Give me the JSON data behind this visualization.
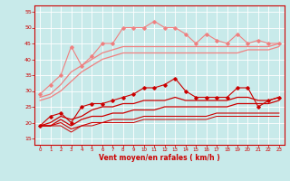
{
  "bg_color": "#c8eaea",
  "grid_color": "#ffffff",
  "xlabel": "Vent moyen/en rafales ( km/h )",
  "xlim": [
    -0.5,
    23.5
  ],
  "ylim": [
    13,
    57
  ],
  "yticks": [
    15,
    20,
    25,
    30,
    35,
    40,
    45,
    50,
    55
  ],
  "xticks": [
    0,
    1,
    2,
    3,
    4,
    5,
    6,
    7,
    8,
    9,
    10,
    11,
    12,
    13,
    14,
    15,
    16,
    17,
    18,
    19,
    20,
    21,
    22,
    23
  ],
  "lines": [
    {
      "x": [
        0,
        1,
        2,
        3,
        4,
        5,
        6,
        7,
        8,
        9,
        10,
        11,
        12,
        13,
        14,
        15,
        16,
        17,
        18,
        19,
        20,
        21,
        22,
        23
      ],
      "y": [
        29,
        32,
        35,
        44,
        38,
        41,
        45,
        45,
        50,
        50,
        50,
        52,
        50,
        50,
        48,
        45,
        48,
        46,
        45,
        48,
        45,
        46,
        45,
        45
      ],
      "color": "#f08080",
      "lw": 0.8,
      "marker": "D",
      "ms": 1.8,
      "zorder": 3
    },
    {
      "x": [
        0,
        1,
        2,
        3,
        4,
        5,
        6,
        7,
        8,
        9,
        10,
        11,
        12,
        13,
        14,
        15,
        16,
        17,
        18,
        19,
        20,
        21,
        22,
        23
      ],
      "y": [
        28,
        29,
        32,
        36,
        38,
        40,
        42,
        43,
        44,
        44,
        44,
        44,
        44,
        44,
        44,
        44,
        44,
        44,
        44,
        44,
        44,
        44,
        44,
        45
      ],
      "color": "#f08080",
      "lw": 0.9,
      "marker": null,
      "ms": 0,
      "zorder": 2
    },
    {
      "x": [
        0,
        1,
        2,
        3,
        4,
        5,
        6,
        7,
        8,
        9,
        10,
        11,
        12,
        13,
        14,
        15,
        16,
        17,
        18,
        19,
        20,
        21,
        22,
        23
      ],
      "y": [
        27,
        28,
        30,
        33,
        36,
        38,
        40,
        41,
        42,
        42,
        42,
        42,
        42,
        42,
        42,
        42,
        42,
        42,
        42,
        42,
        43,
        43,
        43,
        44
      ],
      "color": "#f08080",
      "lw": 0.9,
      "marker": null,
      "ms": 0,
      "zorder": 2
    },
    {
      "x": [
        0,
        1,
        2,
        3,
        4,
        5,
        6,
        7,
        8,
        9,
        10,
        11,
        12,
        13,
        14,
        15,
        16,
        17,
        18,
        19,
        20,
        21,
        22,
        23
      ],
      "y": [
        19,
        22,
        23,
        20,
        25,
        26,
        26,
        27,
        28,
        29,
        31,
        31,
        32,
        34,
        30,
        28,
        28,
        28,
        28,
        31,
        31,
        25,
        27,
        28
      ],
      "color": "#cc0000",
      "lw": 0.8,
      "marker": "D",
      "ms": 1.8,
      "zorder": 5
    },
    {
      "x": [
        0,
        1,
        2,
        3,
        4,
        5,
        6,
        7,
        8,
        9,
        10,
        11,
        12,
        13,
        14,
        15,
        16,
        17,
        18,
        19,
        20,
        21,
        22,
        23
      ],
      "y": [
        19,
        20,
        22,
        21,
        22,
        24,
        25,
        25,
        26,
        26,
        27,
        27,
        27,
        28,
        27,
        27,
        27,
        27,
        27,
        28,
        28,
        27,
        27,
        28
      ],
      "color": "#cc0000",
      "lw": 0.9,
      "marker": null,
      "ms": 0,
      "zorder": 4
    },
    {
      "x": [
        0,
        1,
        2,
        3,
        4,
        5,
        6,
        7,
        8,
        9,
        10,
        11,
        12,
        13,
        14,
        15,
        16,
        17,
        18,
        19,
        20,
        21,
        22,
        23
      ],
      "y": [
        19,
        19,
        21,
        19,
        21,
        22,
        22,
        23,
        23,
        24,
        24,
        24,
        25,
        25,
        25,
        25,
        25,
        25,
        25,
        26,
        26,
        26,
        26,
        27
      ],
      "color": "#cc0000",
      "lw": 0.9,
      "marker": null,
      "ms": 0,
      "zorder": 4
    },
    {
      "x": [
        0,
        1,
        2,
        3,
        4,
        5,
        6,
        7,
        8,
        9,
        10,
        11,
        12,
        13,
        14,
        15,
        16,
        17,
        18,
        19,
        20,
        21,
        22,
        23
      ],
      "y": [
        19,
        19,
        20,
        18,
        19,
        20,
        20,
        21,
        21,
        21,
        22,
        22,
        22,
        22,
        22,
        22,
        22,
        23,
        23,
        23,
        23,
        23,
        23,
        23
      ],
      "color": "#cc0000",
      "lw": 0.8,
      "marker": null,
      "ms": 0,
      "zorder": 4
    },
    {
      "x": [
        0,
        1,
        2,
        3,
        4,
        5,
        6,
        7,
        8,
        9,
        10,
        11,
        12,
        13,
        14,
        15,
        16,
        17,
        18,
        19,
        20,
        21,
        22,
        23
      ],
      "y": [
        19,
        19,
        19,
        17,
        19,
        19,
        20,
        20,
        20,
        20,
        21,
        21,
        21,
        21,
        21,
        21,
        21,
        22,
        22,
        22,
        22,
        22,
        22,
        22
      ],
      "color": "#cc0000",
      "lw": 0.7,
      "marker": null,
      "ms": 0,
      "zorder": 4
    }
  ]
}
